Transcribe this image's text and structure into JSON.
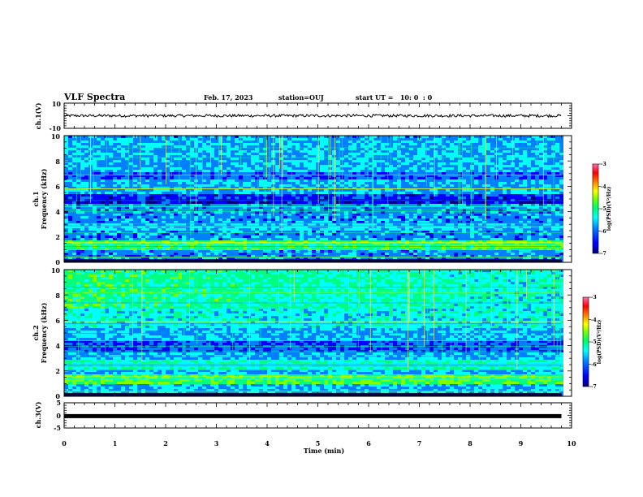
{
  "header": {
    "title": "VLF Spectra",
    "date": "Feb. 17, 2023",
    "station": "station=OUJ",
    "start": "start UT =   10: 0  : 0"
  },
  "chart_data": [
    {
      "type": "line",
      "id": "ch1-waveform",
      "ylabel": "ch.1(V)",
      "ylim": [
        -10,
        10
      ],
      "yticks": [
        "10",
        "-10"
      ],
      "xlim": [
        0,
        10
      ],
      "description_series": "noise trace centred near 0 V, amplitude about ±1 V, spanning 0–9.8 min"
    },
    {
      "type": "heatmap",
      "id": "ch1-spectrogram",
      "ylabel": "ch.1 Frequency (kHz)",
      "ylabel_line1": "ch.1",
      "ylabel_line2": "Frequency (kHz)",
      "ylim": [
        0,
        10
      ],
      "yticks": [
        "0",
        "2",
        "4",
        "6",
        "8",
        "10"
      ],
      "xlim": [
        0,
        10
      ],
      "data_xmax": 9.8,
      "colorbar": {
        "label": "log(PSD)(V²/Hz)",
        "range": [
          -7,
          -3
        ],
        "ticks": [
          "-3",
          "-4",
          "-5",
          "-6",
          "-7"
        ]
      },
      "strong_bands_khz": [
        0.4,
        1.4,
        1.55,
        2.8,
        4.4,
        5.8,
        6.9
      ]
    },
    {
      "type": "heatmap",
      "id": "ch2-spectrogram",
      "ylabel": "ch.2 Frequency (kHz)",
      "ylabel_line1": "ch.2",
      "ylabel_line2": "Frequency (kHz)",
      "ylim": [
        0,
        10
      ],
      "yticks": [
        "0",
        "2",
        "4",
        "6",
        "8",
        "10"
      ],
      "xlim": [
        0,
        10
      ],
      "data_xmax": 9.8,
      "colorbar": {
        "label": "log(PSD)(V²/Hz)",
        "range": [
          -7,
          -3
        ],
        "ticks": [
          "-3",
          "-4",
          "-5",
          "-6",
          "-7"
        ]
      },
      "strong_bands_khz": [
        0.4,
        1.4,
        1.55,
        2.6,
        4.4,
        5.9,
        8.2
      ]
    },
    {
      "type": "line",
      "id": "ch3-waveform",
      "ylabel": "ch.3(V)",
      "ylim": [
        -5,
        5
      ],
      "yticks": [
        "5",
        "0",
        "-5"
      ],
      "xlim": [
        0,
        10
      ],
      "xlabel": "Time (min)",
      "xticks": [
        "0",
        "1",
        "2",
        "3",
        "4",
        "5",
        "6",
        "7",
        "8",
        "9",
        "10"
      ],
      "constant_value_v": -0.3
    }
  ],
  "colors": {
    "colormap": [
      "#000080",
      "#0000ff",
      "#0080ff",
      "#00ffff",
      "#00ff80",
      "#80ff00",
      "#ffff00",
      "#ff8000",
      "#ff0000",
      "#ff60a0"
    ]
  }
}
